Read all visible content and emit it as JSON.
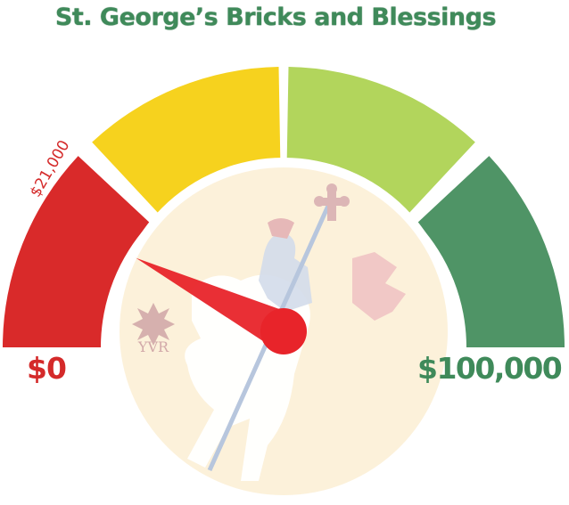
{
  "title": "St. George’s Bricks and Blessings",
  "gauge": {
    "min_label": "$0",
    "max_label": "$100,000",
    "current_label": "$21,000",
    "min_value": 0,
    "max_value": 100000,
    "current_value": 21000,
    "segments": [
      {
        "name": "red",
        "color": "#d92a2a"
      },
      {
        "name": "yellow",
        "color": "#f6d21e"
      },
      {
        "name": "light-green",
        "color": "#b2d55c"
      },
      {
        "name": "dark-green",
        "color": "#4f9466"
      }
    ],
    "needle_color": "#e8242a",
    "logo_text": "YVR"
  }
}
